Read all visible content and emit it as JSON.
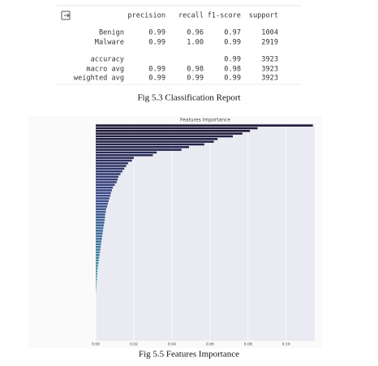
{
  "report": {
    "header": [
      "precision",
      "recall",
      "f1-score",
      "support"
    ],
    "rows": [
      {
        "label": "Benign",
        "precision": "0.99",
        "recall": "0.96",
        "f1-score": "0.97",
        "support": "1004"
      },
      {
        "label": "Malware",
        "precision": "0.99",
        "recall": "1.00",
        "f1-score": "0.99",
        "support": "2919"
      },
      {
        "label": "accuracy",
        "f1-score": "0.99",
        "support": "3923"
      },
      {
        "label": "macro avg",
        "precision": "0.99",
        "recall": "0.98",
        "f1-score": "0.98",
        "support": "3923"
      },
      {
        "label": "weighted avg",
        "precision": "0.99",
        "recall": "0.99",
        "f1-score": "0.99",
        "support": "3923"
      }
    ],
    "caption": "Fig 5.3 Classification Report"
  },
  "chart_data": {
    "type": "barh",
    "title": "Features Importance",
    "values": [
      0.114,
      0.085,
      0.081,
      0.077,
      0.072,
      0.064,
      0.062,
      0.057,
      0.049,
      0.045,
      0.032,
      0.03,
      0.02,
      0.019,
      0.017,
      0.016,
      0.015,
      0.014,
      0.013,
      0.012,
      0.0115,
      0.011,
      0.01,
      0.009,
      0.0085,
      0.008,
      0.0077,
      0.0072,
      0.0068,
      0.0064,
      0.006,
      0.0055,
      0.0053,
      0.005,
      0.0049,
      0.0047,
      0.0045,
      0.0043,
      0.004,
      0.0038,
      0.0036,
      0.0034,
      0.0032,
      0.003,
      0.0028,
      0.0026,
      0.0024,
      0.0022,
      0.002,
      0.0018,
      0.0016,
      0.0014,
      0.0012,
      0.001,
      0.0009,
      0.0008,
      0.0007,
      0.0006,
      0.0005,
      0.0004,
      0.0003,
      0.0002,
      0.0001,
      0,
      0,
      0,
      0,
      0,
      0,
      0,
      0,
      0,
      0,
      0,
      0,
      0,
      0,
      0,
      0,
      0
    ],
    "colors": [
      "#1c1733",
      "#3b4a8c",
      "#3a8ea0",
      "#a6d9b4"
    ],
    "xlim": [
      0,
      0.115
    ],
    "xticks": [
      {
        "value": 0,
        "label": "0.00"
      },
      {
        "value": 0.02,
        "label": "0.02"
      },
      {
        "value": 0.04,
        "label": "0.04"
      },
      {
        "value": 0.06,
        "label": "0.06"
      },
      {
        "value": 0.08,
        "label": "0.08"
      },
      {
        "value": 0.1,
        "label": "0.10"
      }
    ],
    "grid": true,
    "caption": "Fig 5.5 Features Importance"
  }
}
